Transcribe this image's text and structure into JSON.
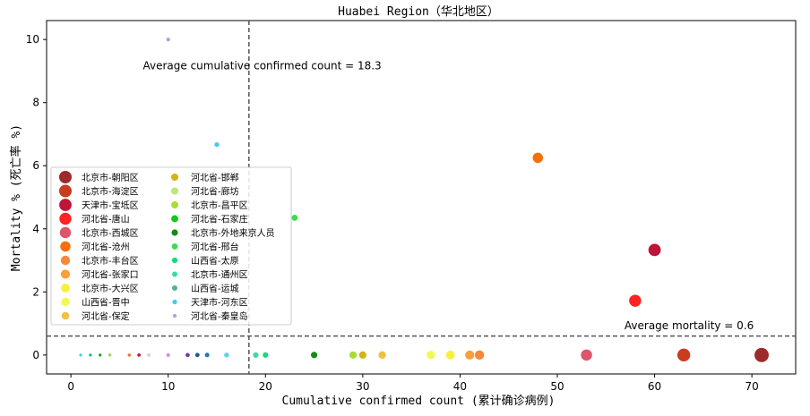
{
  "chart_data": {
    "type": "scatter",
    "title": "Huabei Region（华北地区）",
    "xlabel": "Cumulative confirmed count (累计确诊病例)",
    "ylabel": "Mortality % (死亡率 %)",
    "xlim": [
      -2.5,
      74.5
    ],
    "ylim": [
      -0.6,
      10.6
    ],
    "xticks": [
      "0",
      "10",
      "20",
      "30",
      "40",
      "50",
      "60",
      "70"
    ],
    "yticks": [
      "0",
      "2",
      "4",
      "6",
      "8",
      "10"
    ],
    "grid": false,
    "legend_placement": "center-left",
    "annotations": {
      "avg_confirmed_label": "Average cumulative confirmed count = 18.3",
      "avg_mortality_label": "Average mortality = 0.6",
      "avg_confirmed_value": 18.3,
      "avg_mortality_value": 0.6
    },
    "series": [
      {
        "name": "北京市-朝阳区",
        "x": 71,
        "y": 0,
        "color": "#9e2a2b"
      },
      {
        "name": "北京市-海淀区",
        "x": 63,
        "y": 0,
        "color": "#c83c1f"
      },
      {
        "name": "天津市-宝坻区",
        "x": 60,
        "y": 3.33,
        "color": "#be1438"
      },
      {
        "name": "河北省-唐山",
        "x": 58,
        "y": 1.72,
        "color": "#ff2323"
      },
      {
        "name": "北京市-西城区",
        "x": 53,
        "y": 0,
        "color": "#dd5568"
      },
      {
        "name": "河北省-沧州",
        "x": 48,
        "y": 6.25,
        "color": "#f4700c"
      },
      {
        "name": "北京市-丰台区",
        "x": 42,
        "y": 0,
        "color": "#f5883a"
      },
      {
        "name": "河北省-张家口",
        "x": 41,
        "y": 0,
        "color": "#f9a03c"
      },
      {
        "name": "北京市-大兴区",
        "x": 39,
        "y": 0,
        "color": "#faf03c"
      },
      {
        "name": "山西省-晋中",
        "x": 37,
        "y": 0,
        "color": "#f0fa55"
      },
      {
        "name": "河北省-保定",
        "x": 32,
        "y": 0,
        "color": "#f0c040"
      },
      {
        "name": "河北省-邯郸",
        "x": 30,
        "y": 0,
        "color": "#d2b414"
      },
      {
        "name": "河北省-廊坊",
        "x": 30,
        "y": 0,
        "color": "#bee678"
      },
      {
        "name": "北京市-昌平区",
        "x": 29,
        "y": 0,
        "color": "#aadc32"
      },
      {
        "name": "河北省-石家庄",
        "x": 29,
        "y": 0,
        "color": "#14c814"
      },
      {
        "name": "北京市-外地来京人员",
        "x": 25,
        "y": 0,
        "color": "#148c14"
      },
      {
        "name": "河北省-邢台",
        "x": 23,
        "y": 4.35,
        "color": "#3cdc50"
      },
      {
        "name": "山西省-太原",
        "x": 20,
        "y": 0,
        "color": "#14dc78"
      },
      {
        "name": "北京市-通州区",
        "x": 19,
        "y": 0,
        "color": "#3cdca0"
      },
      {
        "name": "山西省-运城",
        "x": 19,
        "y": 0,
        "color": "#50b496"
      },
      {
        "name": "天津市-河东区",
        "x": 15,
        "y": 6.67,
        "color": "#46c8f0"
      },
      {
        "name": "河北省-秦皇岛",
        "x": 10,
        "y": 10.0,
        "color": "#b4a0dc"
      }
    ],
    "unlabeled_points": [
      {
        "x": 16,
        "y": 0,
        "color": "#5ad2f0"
      },
      {
        "x": 14,
        "y": 0,
        "color": "#2878b4"
      },
      {
        "x": 13,
        "y": 0,
        "color": "#1e5a8c"
      },
      {
        "x": 12,
        "y": 0,
        "color": "#6a3cb4"
      },
      {
        "x": 10,
        "y": 0,
        "color": "#c896dc"
      },
      {
        "x": 8,
        "y": 0,
        "color": "#c8dcc8"
      },
      {
        "x": 7,
        "y": 0,
        "color": "#be1e3c"
      },
      {
        "x": 6,
        "y": 0,
        "color": "#f07828"
      },
      {
        "x": 4,
        "y": 0,
        "color": "#96d250"
      },
      {
        "x": 3,
        "y": 0,
        "color": "#14a014"
      },
      {
        "x": 2,
        "y": 0,
        "color": "#14b48c"
      },
      {
        "x": 1,
        "y": 0,
        "color": "#28dcdc"
      }
    ]
  }
}
